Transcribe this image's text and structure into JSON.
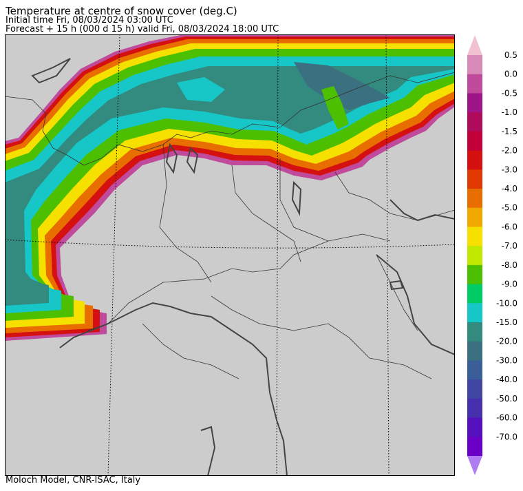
{
  "header": {
    "title": "Temperature at centre of snow cover (deg.C)",
    "initial_time": "Initial time  Fri, 08/03/2024  03:00 UTC",
    "forecast": "Forecast  +  15 h  (000 d 15 h)  valid Fri, 08/03/2024 18:00 UTC"
  },
  "footer": {
    "credit": "Moloch Model, CNR-ISAC, Italy"
  },
  "map": {
    "background_color": "#cccccc",
    "coastline_color": "#444444",
    "border_color": "#333333",
    "graticule_color": "#000000"
  },
  "legend": {
    "upper_extend_color": "#f0c2cf",
    "lower_extend_color": "#b07cf2",
    "entries": [
      {
        "label": "0.5",
        "color": "#d889b8"
      },
      {
        "label": "0.0",
        "color": "#c04a9c"
      },
      {
        "label": "-0.5",
        "color": "#a0148a"
      },
      {
        "label": "-1.0",
        "color": "#b00a5a"
      },
      {
        "label": "-1.5",
        "color": "#c2003a"
      },
      {
        "label": "-2.0",
        "color": "#d41010"
      },
      {
        "label": "-3.0",
        "color": "#e03800"
      },
      {
        "label": "-4.0",
        "color": "#e86e00"
      },
      {
        "label": "-5.0",
        "color": "#f0a800"
      },
      {
        "label": "-6.0",
        "color": "#f6e000"
      },
      {
        "label": "-7.0",
        "color": "#c0e800"
      },
      {
        "label": "-8.0",
        "color": "#4cc000"
      },
      {
        "label": "-9.0",
        "color": "#00cc66"
      },
      {
        "label": "-10.0",
        "color": "#17c6c6"
      },
      {
        "label": "-15.0",
        "color": "#338a7e"
      },
      {
        "label": "-20.0",
        "color": "#3a7080"
      },
      {
        "label": "-30.0",
        "color": "#3a5e98"
      },
      {
        "label": "-40.0",
        "color": "#3f45a0"
      },
      {
        "label": "-50.0",
        "color": "#4630ae"
      },
      {
        "label": "-60.0",
        "color": "#5410bc"
      },
      {
        "label": "-70.0",
        "color": "#6a00c8"
      }
    ]
  }
}
